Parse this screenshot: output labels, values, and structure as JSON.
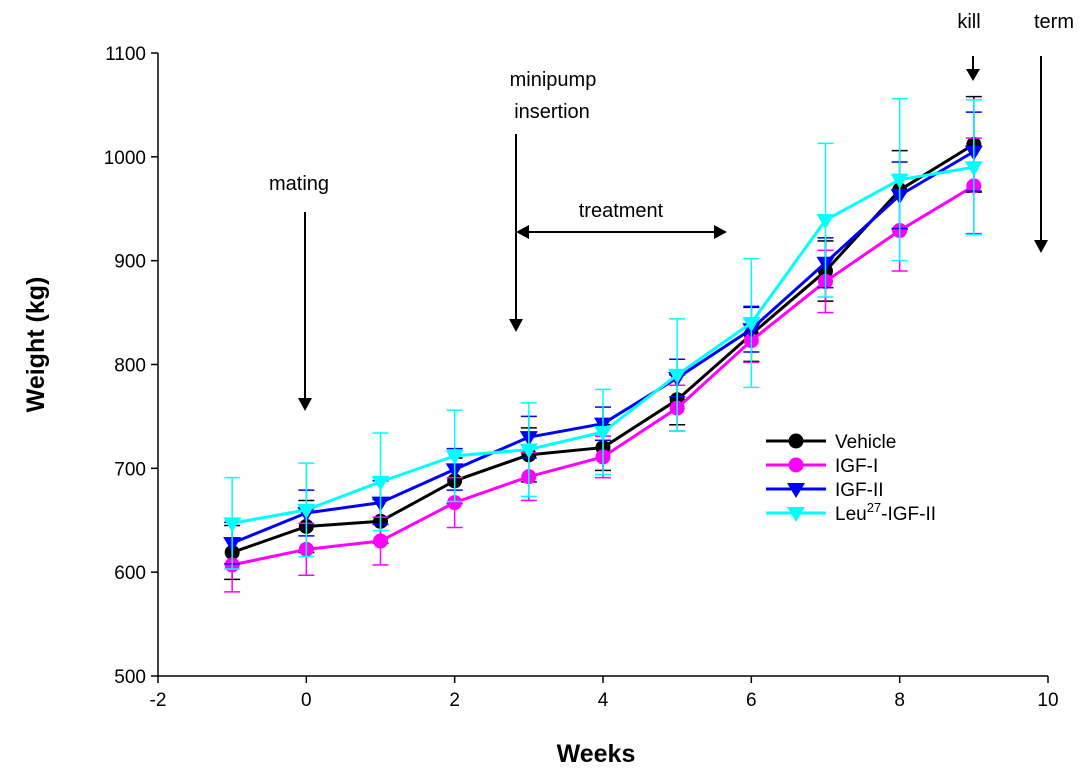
{
  "chart_data": {
    "type": "line",
    "xlabel": "Weeks",
    "ylabel": "Weight (kg)",
    "xlim": [
      -2,
      10
    ],
    "ylim": [
      500,
      1100
    ],
    "xticks": [
      "-2",
      "0",
      "2",
      "4",
      "6",
      "8",
      "10"
    ],
    "yticks": [
      "500",
      "600",
      "700",
      "800",
      "900",
      "1000",
      "1100"
    ],
    "grid": false,
    "legend_position": "right",
    "x": [
      -1,
      0,
      1,
      2,
      3,
      4,
      5,
      6,
      7,
      8,
      9
    ],
    "series": [
      {
        "name": "Vehicle",
        "color": "#000000",
        "marker": "circle",
        "values": [
          619,
          644,
          649,
          688,
          713,
          720,
          766,
          829,
          890,
          968,
          1012
        ],
        "errors": [
          26,
          25,
          21,
          22,
          26,
          22,
          24,
          26,
          29,
          38,
          46
        ]
      },
      {
        "name": "IGF-I",
        "color": "#ff00ff",
        "marker": "circle",
        "values": [
          607,
          622,
          630,
          667,
          692,
          711,
          758,
          823,
          880,
          929,
          972
        ],
        "errors": [
          26,
          25,
          23,
          24,
          23,
          20,
          22,
          21,
          30,
          39,
          46
        ]
      },
      {
        "name": "IGF-II",
        "color": "#0000ff",
        "marker": "triangle-down",
        "values": [
          628,
          657,
          667,
          699,
          730,
          743,
          787,
          834,
          898,
          963,
          1005
        ],
        "errors": [
          20,
          22,
          21,
          20,
          20,
          16,
          18,
          22,
          24,
          32,
          38
        ]
      },
      {
        "name": "Leu27-IGF-II",
        "name_main": "Leu",
        "name_sup": "27",
        "name_rest": "-IGF-II",
        "color": "#00ffff",
        "marker": "triangle-down",
        "values": [
          647,
          660,
          687,
          712,
          718,
          735,
          790,
          840,
          939,
          978,
          990
        ],
        "errors": [
          44,
          45,
          47,
          44,
          45,
          41,
          54,
          62,
          74,
          78,
          65
        ]
      }
    ],
    "annotations": {
      "mating": "mating",
      "minipump_1": "minipump",
      "minipump_2": "insertion",
      "treatment": "treatment",
      "kill": "kill",
      "term": "term"
    }
  }
}
